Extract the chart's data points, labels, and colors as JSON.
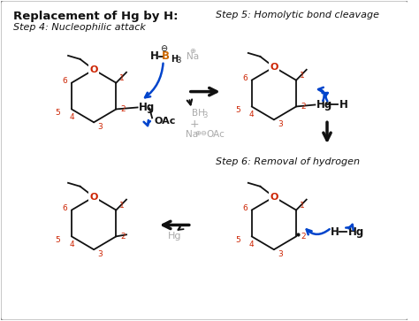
{
  "title": "Replacement of Hg by H:",
  "step4_label": "Step 4: Nucleophilic attack",
  "step5_label": "Step 5: Homolytic bond cleavage",
  "step6_label": "Step 6: Removal of hydrogen",
  "bg_color": "#ffffff",
  "border_color": "#888888",
  "black": "#111111",
  "red": "#cc2200",
  "orange": "#cc6600",
  "blue": "#0044cc",
  "gray": "#aaaaaa",
  "ring_r": 30
}
